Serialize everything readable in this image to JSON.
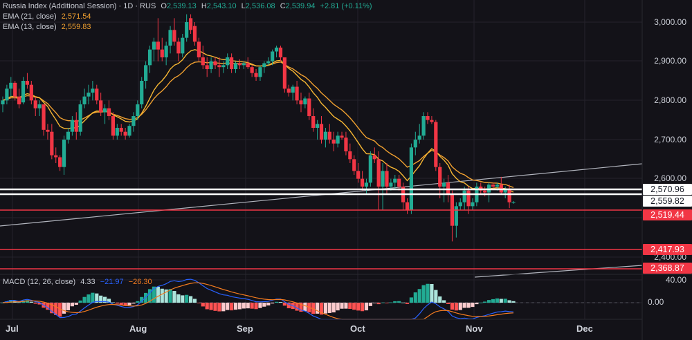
{
  "header": {
    "symbol_title": "Russia Index (Additional Session) · 1D · RUS",
    "ohlc": {
      "open_key": "O",
      "open": "2,539.13",
      "high_key": "H",
      "high": "2,543.10",
      "low_key": "L",
      "low": "2,536.08",
      "close_key": "C",
      "close": "2,539.94",
      "change": "+2.81 (+0.11%)"
    },
    "indicators": [
      {
        "label": "EMA (21, close)",
        "value": "2,571.54"
      },
      {
        "label": "EMA (13, close)",
        "value": "2,559.83"
      }
    ]
  },
  "macd_legend": {
    "label": "MACD (12, 26, close)",
    "histogram": "4.33",
    "macd": "−21.97",
    "signal": "−26.30"
  },
  "price_axis": {
    "ticks": [
      "3,000.00",
      "2,900.00",
      "2,800.00",
      "2,700.00",
      "2,600.00",
      "2,400.00"
    ],
    "tags": [
      {
        "value": "2,570.96",
        "style": "white"
      },
      {
        "value": "2,559.82",
        "style": "white"
      },
      {
        "value": "2,519.44",
        "style": "red"
      },
      {
        "value": "2,417.93",
        "style": "red"
      },
      {
        "value": "2,368.87",
        "style": "red"
      }
    ]
  },
  "macd_axis": {
    "ticks": [
      "40.00",
      "0.00"
    ]
  },
  "time_axis": {
    "labels": [
      "Jul",
      "Aug",
      "Sep",
      "Oct",
      "Nov",
      "Dec"
    ]
  },
  "colors": {
    "background": "#131218",
    "up": "#22ab94",
    "down": "#f23645",
    "ema21": "#f0a030",
    "ema13": "#f7b733",
    "macd_line": "#2962ff",
    "signal_line": "#f57c20",
    "grid": "#24232b",
    "hline_red": "#f23645",
    "hline_white": "#ffffff",
    "trendline": "#b2b5be"
  },
  "chart_data": {
    "type": "candlestick",
    "title": "Russia Index (Additional Session) · 1D · RUS",
    "x_labels": [
      "Jul",
      "Aug",
      "Sep",
      "Oct",
      "Nov",
      "Dec"
    ],
    "ylim": [
      2330,
      3050
    ],
    "y_ticks": [
      2400,
      2600,
      2700,
      2800,
      2900,
      3000
    ],
    "last": {
      "open": 2539.13,
      "high": 2543.1,
      "low": 2536.08,
      "close": 2539.94,
      "change": 2.81,
      "change_pct": 0.11
    },
    "ema21_last": 2571.54,
    "ema13_last": 2559.83,
    "horizontal_levels": [
      2570.96,
      2559.82,
      2519.44,
      2417.93,
      2368.87
    ],
    "candles_ohlc": [
      [
        2790,
        2810,
        2770,
        2800
      ],
      [
        2800,
        2840,
        2790,
        2830
      ],
      [
        2830,
        2860,
        2810,
        2845
      ],
      [
        2845,
        2850,
        2800,
        2810
      ],
      [
        2810,
        2830,
        2780,
        2790
      ],
      [
        2795,
        2860,
        2790,
        2850
      ],
      [
        2850,
        2870,
        2830,
        2840
      ],
      [
        2840,
        2850,
        2790,
        2800
      ],
      [
        2800,
        2810,
        2760,
        2780
      ],
      [
        2780,
        2800,
        2760,
        2790
      ],
      [
        2790,
        2790,
        2710,
        2725
      ],
      [
        2725,
        2740,
        2700,
        2720
      ],
      [
        2720,
        2740,
        2650,
        2660
      ],
      [
        2660,
        2680,
        2640,
        2655
      ],
      [
        2655,
        2660,
        2620,
        2630
      ],
      [
        2630,
        2710,
        2610,
        2700
      ],
      [
        2700,
        2730,
        2690,
        2720
      ],
      [
        2720,
        2760,
        2710,
        2750
      ],
      [
        2750,
        2770,
        2700,
        2720
      ],
      [
        2720,
        2800,
        2710,
        2790
      ],
      [
        2790,
        2830,
        2780,
        2810
      ],
      [
        2810,
        2840,
        2790,
        2820
      ],
      [
        2820,
        2850,
        2800,
        2830
      ],
      [
        2830,
        2840,
        2790,
        2800
      ],
      [
        2800,
        2820,
        2760,
        2770
      ],
      [
        2770,
        2790,
        2740,
        2780
      ],
      [
        2780,
        2800,
        2750,
        2760
      ],
      [
        2760,
        2770,
        2700,
        2710
      ],
      [
        2710,
        2740,
        2700,
        2730
      ],
      [
        2730,
        2740,
        2710,
        2720
      ],
      [
        2720,
        2730,
        2700,
        2710
      ],
      [
        2710,
        2740,
        2705,
        2735
      ],
      [
        2735,
        2770,
        2720,
        2760
      ],
      [
        2760,
        2800,
        2750,
        2790
      ],
      [
        2790,
        2860,
        2780,
        2850
      ],
      [
        2850,
        2900,
        2830,
        2890
      ],
      [
        2890,
        2940,
        2870,
        2930
      ],
      [
        2930,
        2960,
        2900,
        2950
      ],
      [
        2950,
        3010,
        2900,
        2930
      ],
      [
        2930,
        2960,
        2900,
        2910
      ],
      [
        2910,
        2950,
        2890,
        2940
      ],
      [
        2940,
        2990,
        2920,
        2980
      ],
      [
        2980,
        3010,
        2940,
        2950
      ],
      [
        2950,
        2960,
        2900,
        2920
      ],
      [
        2920,
        2970,
        2910,
        2960
      ],
      [
        2960,
        3020,
        2950,
        3000
      ],
      [
        3010,
        3020,
        2970,
        2980
      ],
      [
        2990,
        3000,
        2940,
        2950
      ],
      [
        2950,
        2960,
        2900,
        2910
      ],
      [
        2910,
        2940,
        2880,
        2890
      ],
      [
        2890,
        2910,
        2860,
        2880
      ],
      [
        2880,
        2910,
        2870,
        2900
      ],
      [
        2900,
        2910,
        2880,
        2890
      ],
      [
        2890,
        2910,
        2860,
        2885
      ],
      [
        2885,
        2900,
        2870,
        2890
      ],
      [
        2890,
        2920,
        2880,
        2910
      ],
      [
        2910,
        2920,
        2870,
        2880
      ],
      [
        2880,
        2900,
        2870,
        2895
      ],
      [
        2895,
        2905,
        2880,
        2890
      ],
      [
        2890,
        2900,
        2880,
        2895
      ],
      [
        2895,
        2910,
        2880,
        2885
      ],
      [
        2885,
        2890,
        2860,
        2870
      ],
      [
        2870,
        2880,
        2850,
        2860
      ],
      [
        2860,
        2890,
        2850,
        2885
      ],
      [
        2885,
        2900,
        2870,
        2895
      ],
      [
        2895,
        2910,
        2890,
        2900
      ],
      [
        2900,
        2930,
        2890,
        2925
      ],
      [
        2925,
        2940,
        2910,
        2935
      ],
      [
        2935,
        2940,
        2900,
        2910
      ],
      [
        2910,
        2910,
        2820,
        2830
      ],
      [
        2830,
        2840,
        2810,
        2820
      ],
      [
        2820,
        2840,
        2800,
        2835
      ],
      [
        2835,
        2850,
        2790,
        2800
      ],
      [
        2800,
        2820,
        2770,
        2790
      ],
      [
        2790,
        2810,
        2780,
        2805
      ],
      [
        2805,
        2820,
        2750,
        2760
      ],
      [
        2760,
        2780,
        2720,
        2730
      ],
      [
        2730,
        2750,
        2700,
        2740
      ],
      [
        2740,
        2760,
        2690,
        2700
      ],
      [
        2700,
        2730,
        2680,
        2720
      ],
      [
        2720,
        2740,
        2690,
        2700
      ],
      [
        2700,
        2720,
        2670,
        2690
      ],
      [
        2690,
        2720,
        2680,
        2710
      ],
      [
        2710,
        2720,
        2700,
        2705
      ],
      [
        2705,
        2720,
        2660,
        2670
      ],
      [
        2670,
        2690,
        2640,
        2650
      ],
      [
        2650,
        2660,
        2610,
        2620
      ],
      [
        2620,
        2640,
        2590,
        2600
      ],
      [
        2600,
        2620,
        2570,
        2580
      ],
      [
        2580,
        2600,
        2560,
        2590
      ],
      [
        2590,
        2670,
        2580,
        2660
      ],
      [
        2660,
        2680,
        2640,
        2650
      ],
      [
        2650,
        2670,
        2520,
        2580
      ],
      [
        2580,
        2640,
        2520,
        2620
      ],
      [
        2620,
        2640,
        2560,
        2580
      ],
      [
        2580,
        2600,
        2570,
        2590
      ],
      [
        2590,
        2610,
        2575,
        2600
      ],
      [
        2600,
        2610,
        2570,
        2580
      ],
      [
        2580,
        2590,
        2520,
        2540
      ],
      [
        2540,
        2550,
        2510,
        2520
      ],
      [
        2520,
        2690,
        2510,
        2680
      ],
      [
        2680,
        2720,
        2660,
        2700
      ],
      [
        2700,
        2740,
        2690,
        2710
      ],
      [
        2710,
        2770,
        2700,
        2760
      ],
      [
        2760,
        2770,
        2740,
        2750
      ],
      [
        2750,
        2760,
        2740,
        2745
      ],
      [
        2745,
        2750,
        2620,
        2630
      ],
      [
        2630,
        2640,
        2550,
        2580
      ],
      [
        2580,
        2600,
        2540,
        2590
      ],
      [
        2590,
        2610,
        2540,
        2560
      ],
      [
        2560,
        2570,
        2440,
        2480
      ],
      [
        2480,
        2540,
        2450,
        2530
      ],
      [
        2530,
        2550,
        2520,
        2540
      ],
      [
        2540,
        2580,
        2520,
        2570
      ],
      [
        2570,
        2580,
        2510,
        2530
      ],
      [
        2530,
        2550,
        2520,
        2540
      ],
      [
        2540,
        2590,
        2530,
        2580
      ],
      [
        2580,
        2590,
        2560,
        2570
      ],
      [
        2570,
        2580,
        2555,
        2565
      ],
      [
        2565,
        2590,
        2540,
        2585
      ],
      [
        2585,
        2590,
        2575,
        2580
      ],
      [
        2580,
        2590,
        2570,
        2585
      ],
      [
        2585,
        2605,
        2560,
        2565
      ],
      [
        2565,
        2580,
        2550,
        2575
      ],
      [
        2575,
        2585,
        2525,
        2540
      ],
      [
        2539.13,
        2543.1,
        2536.08,
        2539.94
      ]
    ]
  }
}
